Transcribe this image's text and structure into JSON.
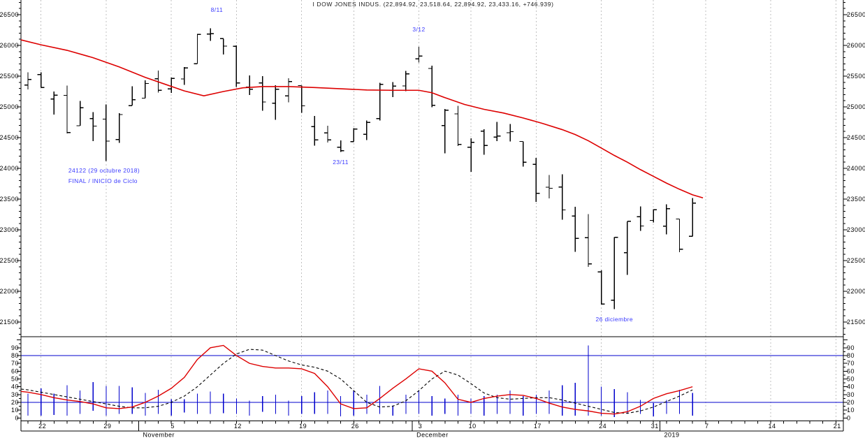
{
  "title": "I DOW JONES INDUS. (22,894.92, 23,518.64, 22,894.92, 23,433.16, +746.939)",
  "colors": {
    "bars": "#000000",
    "ma_line": "#dd0000",
    "k_line": "#dd0000",
    "d_line": "#000000",
    "blue": "#0000cc",
    "grid": "#c0c0c0",
    "annotation": "#3a3aff",
    "axis": "#000000"
  },
  "chart_data": {
    "type": "ohlc+oscillator",
    "title": "I DOW JONES INDUS. (22,894.92, 23,518.64, 22,894.92, 23,433.16, +746.939)",
    "price_panel": {
      "ylim": [
        21500,
        26500
      ],
      "yticks": [
        26500,
        26000,
        25500,
        25000,
        24500,
        24000,
        23500,
        23000,
        22500,
        22000,
        21500
      ],
      "ohlc": [
        [
          25355,
          25560,
          25285,
          25444
        ],
        [
          25526,
          25565,
          25316,
          25317
        ],
        [
          25130,
          25248,
          24874,
          25191
        ],
        [
          25188,
          25345,
          24568,
          24583
        ],
        [
          24693,
          25095,
          24693,
          24985
        ],
        [
          24809,
          24916,
          24445,
          24688
        ],
        [
          24801,
          25040,
          24122,
          24443
        ],
        [
          24469,
          24899,
          24416,
          24875
        ],
        [
          25020,
          25337,
          25020,
          25116
        ],
        [
          25142,
          25432,
          25142,
          25381
        ],
        [
          25459,
          25593,
          25234,
          25271
        ],
        [
          25293,
          25478,
          25229,
          25462
        ],
        [
          25455,
          25645,
          25356,
          25635
        ],
        [
          25703,
          26187,
          25703,
          26180
        ],
        [
          26186,
          26277,
          26073,
          26191
        ],
        [
          26110,
          26110,
          25852,
          25989
        ],
        [
          25988,
          26001,
          25324,
          25387
        ],
        [
          25321,
          25511,
          25193,
          25286
        ],
        [
          25389,
          25501,
          24935,
          25080
        ],
        [
          25061,
          25354,
          24788,
          25289
        ],
        [
          25177,
          25466,
          25072,
          25413
        ],
        [
          25347,
          25347,
          24902,
          25017
        ],
        [
          24677,
          24854,
          24369,
          24465
        ],
        [
          24575,
          24695,
          24419,
          24464
        ],
        [
          24345,
          24454,
          24268,
          24285
        ],
        [
          24436,
          24654,
          24436,
          24640
        ],
        [
          24554,
          24776,
          24459,
          24748
        ],
        [
          24808,
          25390,
          24781,
          25366
        ],
        [
          25268,
          25402,
          25161,
          25338
        ],
        [
          25341,
          25587,
          25256,
          25538
        ],
        [
          25780,
          25980,
          25723,
          25826
        ],
        [
          25625,
          25672,
          24997,
          25027
        ],
        [
          24698,
          24966,
          24242,
          24948
        ],
        [
          24886,
          25018,
          24365,
          24389
        ],
        [
          24346,
          24489,
          23942,
          24423
        ],
        [
          24604,
          24637,
          24224,
          24370
        ],
        [
          24507,
          24758,
          24443,
          24527
        ],
        [
          24579,
          24721,
          24436,
          24597
        ],
        [
          24438,
          24438,
          24030,
          24101
        ],
        [
          24067,
          24168,
          23456,
          23593
        ],
        [
          23693,
          23894,
          23509,
          23676
        ],
        [
          23698,
          23905,
          23163,
          23324
        ],
        [
          23224,
          23374,
          22644,
          22860
        ],
        [
          22872,
          23254,
          22396,
          22445
        ],
        [
          22317,
          22339,
          21792,
          21792
        ],
        [
          21857,
          22878,
          21713,
          22878
        ],
        [
          22629,
          23138,
          22267,
          23138
        ],
        [
          23213,
          23381,
          22981,
          23062
        ],
        [
          23153,
          23333,
          23118,
          23327
        ],
        [
          23058,
          23413,
          22928,
          23346
        ],
        [
          23176,
          23176,
          22638,
          22686
        ],
        [
          22894,
          23518,
          22894,
          23433
        ]
      ],
      "ma_points": [
        [
          -0.54,
          26090
        ],
        [
          1,
          26010
        ],
        [
          3,
          25920
        ],
        [
          5,
          25800
        ],
        [
          7,
          25650
        ],
        [
          9,
          25480
        ],
        [
          10.5,
          25370
        ],
        [
          12,
          25260
        ],
        [
          13.5,
          25180
        ],
        [
          15,
          25250
        ],
        [
          16.5,
          25310
        ],
        [
          18,
          25330
        ],
        [
          20,
          25330
        ],
        [
          22,
          25315
        ],
        [
          24,
          25295
        ],
        [
          26,
          25275
        ],
        [
          28,
          25270
        ],
        [
          30,
          25270
        ],
        [
          31,
          25230
        ],
        [
          32,
          25150
        ],
        [
          33.5,
          25040
        ],
        [
          35,
          24960
        ],
        [
          36.5,
          24900
        ],
        [
          38,
          24820
        ],
        [
          39.5,
          24730
        ],
        [
          41,
          24630
        ],
        [
          42,
          24550
        ],
        [
          43,
          24450
        ],
        [
          44,
          24330
        ],
        [
          45,
          24210
        ],
        [
          46,
          24100
        ],
        [
          47,
          23980
        ],
        [
          48,
          23870
        ],
        [
          49,
          23760
        ],
        [
          50,
          23660
        ],
        [
          51,
          23570
        ],
        [
          51.8,
          23520
        ]
      ],
      "annotations": [
        {
          "text": "8/11",
          "i": 14.5,
          "v": 26545,
          "anchor": "middle"
        },
        {
          "text": "3/12",
          "i": 30,
          "v": 26230,
          "anchor": "middle"
        },
        {
          "text": "23/11",
          "i": 24,
          "v": 24070,
          "anchor": "middle"
        },
        {
          "text": "24122 (29 octubre 2018)",
          "i": 3.1,
          "v": 23930,
          "anchor": "start"
        },
        {
          "text": "FINAL / INICIO de Ciclo",
          "i": 3.1,
          "v": 23760,
          "anchor": "start"
        },
        {
          "text": "26 diciembre",
          "i": 45,
          "v": 21510,
          "anchor": "middle"
        }
      ]
    },
    "oscillator_panel": {
      "ylim": [
        0,
        100
      ],
      "yticks": [
        90,
        80,
        70,
        60,
        50,
        40,
        30,
        20,
        10,
        0
      ],
      "hlines": [
        80,
        20
      ],
      "k_lead": 34,
      "d_lead": 37,
      "k": [
        33,
        30,
        26,
        23,
        21,
        18,
        13,
        12,
        14,
        20,
        28,
        38,
        52,
        75,
        90,
        93,
        80,
        70,
        66,
        64,
        64,
        63,
        57,
        40,
        18,
        12,
        13,
        25,
        38,
        50,
        63,
        60,
        45,
        24,
        20,
        25,
        28,
        30,
        29,
        25,
        19,
        14,
        11,
        9,
        6,
        5,
        8,
        15,
        25,
        31,
        35,
        40
      ],
      "d": [
        36,
        33,
        30,
        27,
        24,
        21,
        18,
        15,
        13,
        13,
        15,
        20,
        28,
        40,
        55,
        70,
        82,
        88,
        87,
        80,
        73,
        68,
        65,
        60,
        50,
        35,
        20,
        14,
        15,
        22,
        35,
        50,
        60,
        55,
        44,
        32,
        26,
        24,
        25,
        26,
        26,
        23,
        19,
        15,
        11,
        7,
        6,
        9,
        14,
        21,
        28,
        36
      ],
      "range_bars": [
        [
          3,
          31
        ],
        [
          3,
          38
        ],
        [
          4,
          31
        ],
        [
          3,
          42
        ],
        [
          5,
          35
        ],
        [
          9,
          46
        ],
        [
          3,
          41
        ],
        [
          5,
          41
        ],
        [
          5,
          39
        ],
        [
          3,
          32
        ],
        [
          5,
          36
        ],
        [
          3,
          24
        ],
        [
          7,
          24
        ],
        [
          5,
          31
        ],
        [
          5,
          34
        ],
        [
          6,
          31
        ],
        [
          5,
          25
        ],
        [
          3,
          22
        ],
        [
          8,
          28
        ],
        [
          5,
          30
        ],
        [
          3,
          22
        ],
        [
          5,
          28
        ],
        [
          5,
          33
        ],
        [
          5,
          35
        ],
        [
          2,
          28
        ],
        [
          3,
          35
        ],
        [
          5,
          30
        ],
        [
          5,
          41
        ],
        [
          3,
          16
        ],
        [
          5,
          30
        ],
        [
          5,
          35
        ],
        [
          3,
          28
        ],
        [
          5,
          25
        ],
        [
          3,
          30
        ],
        [
          5,
          25
        ],
        [
          3,
          28
        ],
        [
          5,
          30
        ],
        [
          5,
          35
        ],
        [
          3,
          28
        ],
        [
          5,
          30
        ],
        [
          5,
          35
        ],
        [
          3,
          42
        ],
        [
          3,
          45
        ],
        [
          3,
          93
        ],
        [
          3,
          40
        ],
        [
          1,
          37
        ],
        [
          5,
          33
        ],
        [
          5,
          23
        ],
        [
          2,
          19
        ],
        [
          5,
          23
        ],
        [
          5,
          36
        ],
        [
          3,
          32
        ]
      ]
    },
    "x_axis": {
      "week_ticks": [
        {
          "i": 1,
          "label": "22"
        },
        {
          "i": 6,
          "label": "29"
        },
        {
          "i": 11,
          "label": "5"
        },
        {
          "i": 16,
          "label": "12"
        },
        {
          "i": 21,
          "label": "19"
        },
        {
          "i": 25,
          "label": "26"
        },
        {
          "i": 30,
          "label": "3"
        },
        {
          "i": 34,
          "label": "10"
        },
        {
          "i": 39,
          "label": "17"
        },
        {
          "i": 44,
          "label": "24"
        },
        {
          "i": 48,
          "label": "31"
        },
        {
          "i": 52,
          "label": "7"
        },
        {
          "i": 57,
          "label": "14"
        },
        {
          "i": 62,
          "label": "21"
        }
      ],
      "months": [
        {
          "label": "November",
          "sep_i": 8.5
        },
        {
          "label": "December",
          "sep_i": 29.5
        },
        {
          "label": "2019",
          "sep_i": 48.5
        }
      ]
    }
  }
}
